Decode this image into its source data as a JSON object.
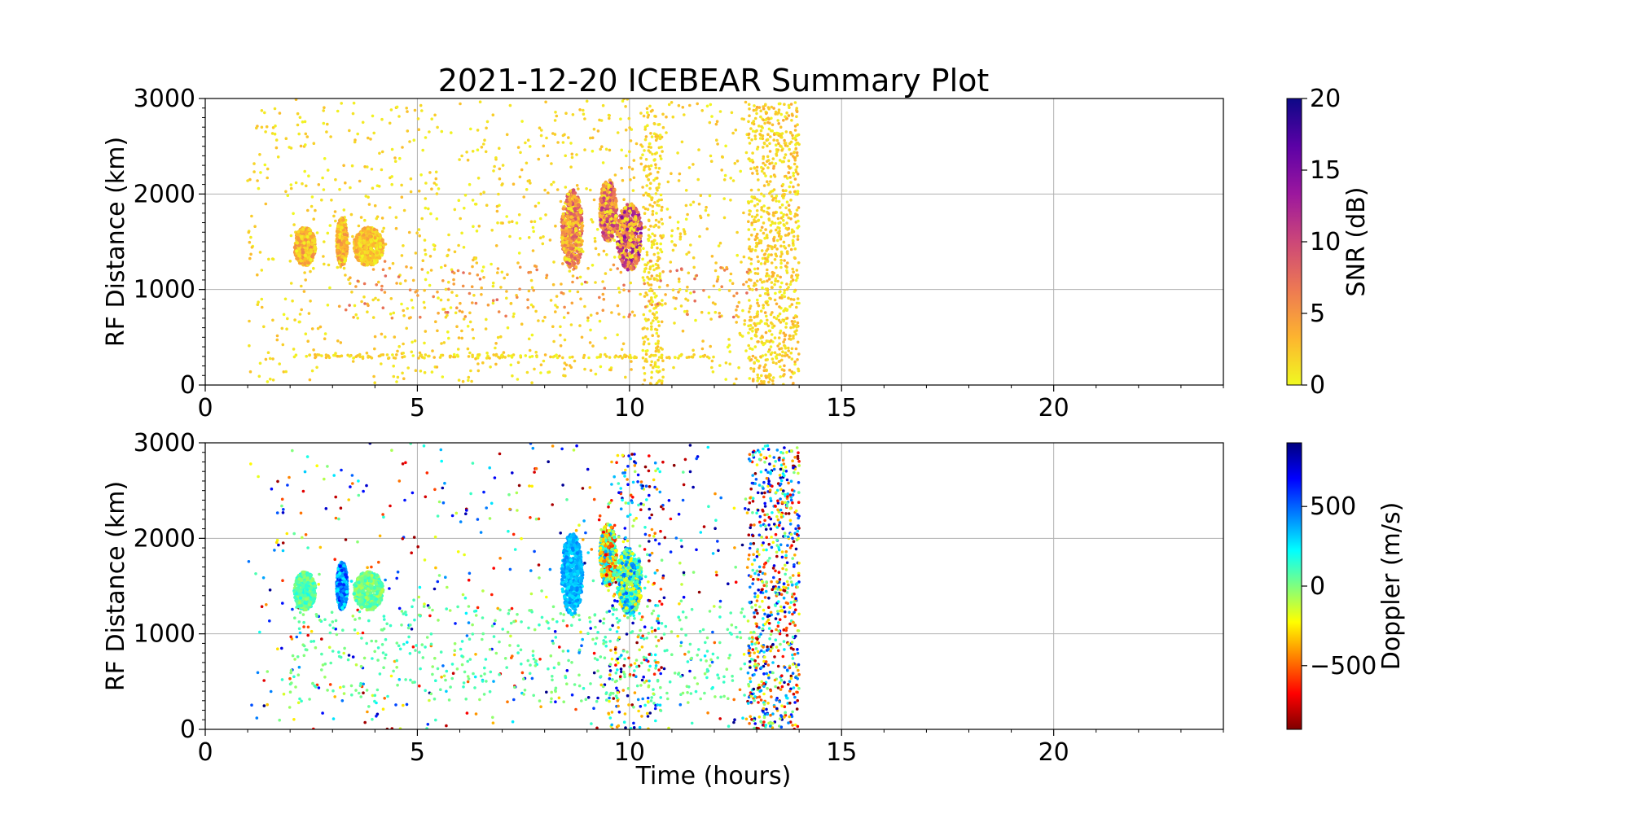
{
  "title": "2021-12-20 ICEBEAR Summary Plot",
  "chart_data": [
    {
      "type": "scatter",
      "name": "snr-panel",
      "xlabel": "",
      "ylabel": "RF Distance (km)",
      "xlim": [
        0,
        24
      ],
      "ylim": [
        0,
        3000
      ],
      "xticks": [
        "0",
        "5",
        "10",
        "15",
        "20"
      ],
      "yticks": [
        "0",
        "1000",
        "2000",
        "3000"
      ],
      "grid": true,
      "colorbar": {
        "label": "SNR (dB)",
        "range": [
          0,
          20
        ],
        "ticks": [
          "0",
          "5",
          "10",
          "15",
          "20"
        ],
        "colormap": "plasma_r",
        "stops": [
          "#f0f921",
          "#fdb42f",
          "#ed7953",
          "#cc4778",
          "#9c179e",
          "#5c01a6",
          "#0d0887"
        ]
      },
      "clusters": [
        {
          "x": [
            2.1,
            2.6
          ],
          "y": [
            1250,
            1650
          ],
          "snr": [
            0,
            6
          ]
        },
        {
          "x": [
            3.1,
            3.35
          ],
          "y": [
            1250,
            1750
          ],
          "snr": [
            0,
            6
          ]
        },
        {
          "x": [
            3.5,
            4.2
          ],
          "y": [
            1250,
            1650
          ],
          "snr": [
            0,
            5
          ]
        },
        {
          "x": [
            8.4,
            8.9
          ],
          "y": [
            1200,
            2050
          ],
          "snr": [
            0,
            10
          ]
        },
        {
          "x": [
            9.3,
            9.7
          ],
          "y": [
            1500,
            2150
          ],
          "snr": [
            0,
            12
          ]
        },
        {
          "x": [
            9.7,
            10.3
          ],
          "y": [
            1200,
            1900
          ],
          "snr": [
            0,
            15
          ]
        }
      ],
      "scatter_bands": [
        {
          "x": [
            1.0,
            14.0
          ],
          "y": [
            0,
            3000
          ],
          "snr": [
            0,
            3
          ],
          "count": 1100
        },
        {
          "x": [
            10.3,
            10.8
          ],
          "y": [
            0,
            2900
          ],
          "snr": [
            0,
            3
          ],
          "count": 250
        },
        {
          "x": [
            12.8,
            14.0
          ],
          "y": [
            0,
            2950
          ],
          "snr": [
            0,
            4
          ],
          "count": 700
        },
        {
          "x": [
            2.0,
            12.0
          ],
          "y": [
            280,
            320
          ],
          "snr": [
            0,
            3
          ],
          "count": 160
        },
        {
          "x": [
            3.0,
            13.0
          ],
          "y": [
            700,
            1300
          ],
          "snr": [
            3,
            8
          ],
          "count": 160
        }
      ]
    },
    {
      "type": "scatter",
      "name": "doppler-panel",
      "xlabel": "Time (hours)",
      "ylabel": "RF Distance (km)",
      "xlim": [
        0,
        24
      ],
      "ylim": [
        0,
        3000
      ],
      "xticks": [
        "0",
        "5",
        "10",
        "15",
        "20"
      ],
      "yticks": [
        "0",
        "1000",
        "2000",
        "3000"
      ],
      "grid": true,
      "colorbar": {
        "label": "Doppler (m/s)",
        "range": [
          -900,
          900
        ],
        "ticks": [
          "500",
          "0",
          "−500"
        ],
        "tick_values": [
          500,
          0,
          -500
        ],
        "colormap": "jet_r",
        "stops": [
          "#7f0000",
          "#ff0000",
          "#ff7f00",
          "#ffff00",
          "#7fff7f",
          "#00ffff",
          "#007fff",
          "#0000ff",
          "#00007f"
        ]
      },
      "clusters": [
        {
          "x": [
            2.1,
            2.6
          ],
          "y": [
            1250,
            1650
          ],
          "doppler": [
            -50,
            200
          ]
        },
        {
          "x": [
            3.1,
            3.35
          ],
          "y": [
            1250,
            1750
          ],
          "doppler": [
            200,
            650
          ]
        },
        {
          "x": [
            3.5,
            4.2
          ],
          "y": [
            1250,
            1650
          ],
          "doppler": [
            -100,
            150
          ]
        },
        {
          "x": [
            8.4,
            8.9
          ],
          "y": [
            1200,
            2050
          ],
          "doppler": [
            250,
            450
          ]
        },
        {
          "x": [
            9.3,
            9.7
          ],
          "y": [
            1500,
            2150
          ],
          "doppler": [
            -700,
            400
          ]
        },
        {
          "x": [
            9.7,
            10.3
          ],
          "y": [
            1200,
            1900
          ],
          "doppler": [
            -300,
            500
          ]
        }
      ],
      "scatter_bands": [
        {
          "x": [
            1.0,
            14.0
          ],
          "y": [
            0,
            3000
          ],
          "doppler": [
            -900,
            900
          ],
          "count": 600
        },
        {
          "x": [
            2.0,
            13.0
          ],
          "y": [
            280,
            1300
          ],
          "doppler": [
            -50,
            150
          ],
          "count": 450
        },
        {
          "x": [
            9.5,
            10.8
          ],
          "y": [
            0,
            2900
          ],
          "doppler": [
            -900,
            900
          ],
          "count": 250
        },
        {
          "x": [
            12.8,
            14.0
          ],
          "y": [
            0,
            2950
          ],
          "doppler": [
            -900,
            900
          ],
          "count": 650
        }
      ]
    }
  ]
}
